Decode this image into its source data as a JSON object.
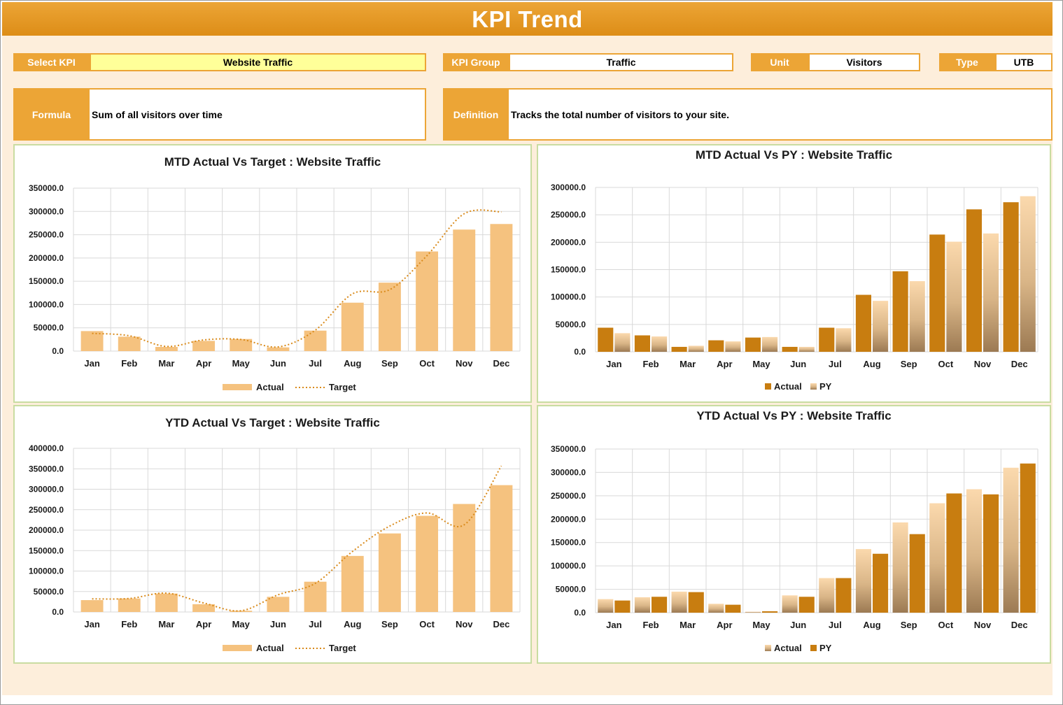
{
  "header": {
    "title": "KPI Trend"
  },
  "selectors": {
    "select_kpi": {
      "label": "Select KPI",
      "value": "Website Traffic"
    },
    "kpi_group": {
      "label": "KPI Group",
      "value": "Traffic"
    },
    "unit": {
      "label": "Unit",
      "value": "Visitors"
    },
    "type": {
      "label": "Type",
      "value": "UTB"
    }
  },
  "formula": {
    "label": "Formula",
    "value": "Sum of all visitors over time"
  },
  "definition": {
    "label": "Definition",
    "value": "Tracks the total number of visitors to your site."
  },
  "colors": {
    "accent": "#eca536",
    "actual_light": "#f5c27f",
    "target_line": "#d98a1a",
    "bar_dark": "#c87d10",
    "panel_border": "#c9dca1"
  },
  "chart_data": [
    {
      "id": "mtd-target",
      "type": "bar",
      "title": "MTD Actual Vs Target : Website Traffic",
      "categories": [
        "Jan",
        "Feb",
        "Mar",
        "Apr",
        "May",
        "Jun",
        "Jul",
        "Aug",
        "Sep",
        "Oct",
        "Nov",
        "Dec"
      ],
      "ylim": [
        0,
        350000
      ],
      "ticks": [
        "0.0",
        "50000.0",
        "100000.0",
        "150000.0",
        "200000.0",
        "250000.0",
        "300000.0",
        "350000.0"
      ],
      "series": [
        {
          "name": "Actual",
          "kind": "bar",
          "values": [
            43000,
            31000,
            9000,
            22000,
            26000,
            8000,
            44000,
            104000,
            147000,
            214000,
            261000,
            273000
          ]
        },
        {
          "name": "Target",
          "kind": "line",
          "values": [
            38000,
            33000,
            10000,
            24000,
            25000,
            9000,
            45000,
            123000,
            132000,
            205000,
            295000,
            299000
          ]
        }
      ],
      "legend": "bottom"
    },
    {
      "id": "mtd-py",
      "type": "bar",
      "title": "MTD Actual Vs PY : Website Traffic",
      "categories": [
        "Jan",
        "Feb",
        "Mar",
        "Apr",
        "May",
        "Jun",
        "Jul",
        "Aug",
        "Sep",
        "Oct",
        "Nov",
        "Dec"
      ],
      "ylim": [
        0,
        300000
      ],
      "ticks": [
        "0.0",
        "50000.0",
        "100000.0",
        "150000.0",
        "200000.0",
        "250000.0",
        "300000.0"
      ],
      "series": [
        {
          "name": "Actual",
          "kind": "bar",
          "values": [
            44000,
            30000,
            9000,
            21000,
            26000,
            9000,
            44000,
            104000,
            147000,
            214000,
            260000,
            273000
          ]
        },
        {
          "name": "PY",
          "kind": "bar",
          "values": [
            34000,
            28000,
            11000,
            19000,
            27000,
            9000,
            43000,
            93000,
            129000,
            201000,
            216000,
            284000
          ]
        }
      ],
      "legend": "bottom"
    },
    {
      "id": "ytd-target",
      "type": "bar",
      "title": "YTD Actual Vs Target : Website Traffic",
      "categories": [
        "Jan",
        "Feb",
        "Mar",
        "Apr",
        "May",
        "Jun",
        "Jul",
        "Aug",
        "Sep",
        "Oct",
        "Nov",
        "Dec"
      ],
      "ylim": [
        0,
        400000
      ],
      "ticks": [
        "0.0",
        "50000.0",
        "100000.0",
        "150000.0",
        "200000.0",
        "250000.0",
        "300000.0",
        "350000.0",
        "400000.0"
      ],
      "series": [
        {
          "name": "Actual",
          "kind": "bar",
          "values": [
            29000,
            33000,
            45000,
            19000,
            3000,
            37000,
            74000,
            137000,
            192000,
            235000,
            264000,
            310000
          ]
        },
        {
          "name": "Target",
          "kind": "line",
          "values": [
            32000,
            33000,
            46000,
            22000,
            3000,
            42000,
            70000,
            148000,
            210000,
            242000,
            213000,
            357000
          ]
        }
      ],
      "legend": "bottom"
    },
    {
      "id": "ytd-py",
      "type": "bar",
      "title": "YTD Actual Vs PY : Website Traffic",
      "categories": [
        "Jan",
        "Feb",
        "Mar",
        "Apr",
        "May",
        "Jun",
        "Jul",
        "Aug",
        "Sep",
        "Oct",
        "Nov",
        "Dec"
      ],
      "ylim": [
        0,
        350000
      ],
      "ticks": [
        "0.0",
        "50000.0",
        "100000.0",
        "150000.0",
        "200000.0",
        "250000.0",
        "300000.0",
        "350000.0"
      ],
      "series": [
        {
          "name": "Actual",
          "kind": "bar",
          "values": [
            29000,
            33000,
            45000,
            19000,
            2000,
            37000,
            74000,
            136000,
            193000,
            234000,
            264000,
            310000
          ]
        },
        {
          "name": "PY",
          "kind": "bar",
          "values": [
            26000,
            34000,
            44000,
            17000,
            3000,
            34000,
            74000,
            126000,
            168000,
            255000,
            253000,
            319000
          ]
        }
      ],
      "legend": "bottom"
    }
  ]
}
